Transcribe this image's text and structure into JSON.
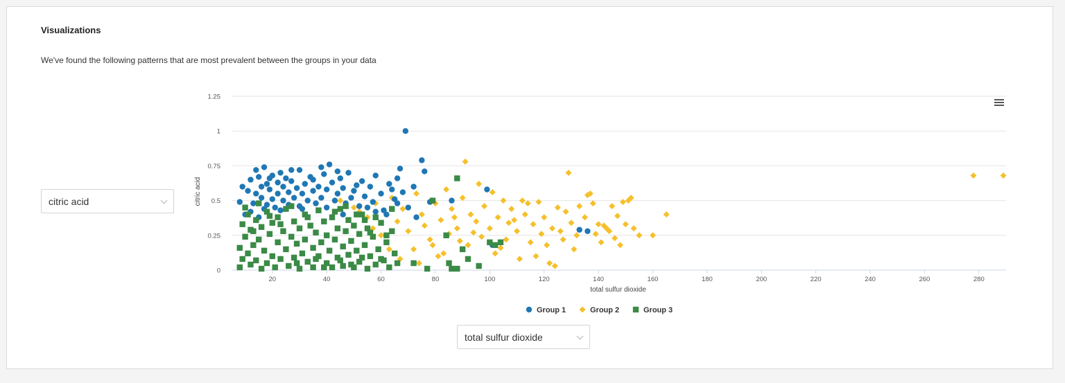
{
  "header": {
    "title": "Visualizations",
    "subtitle": "We've found the following patterns that are most prevalent between the groups in your data"
  },
  "controls": {
    "y_select": "citric acid",
    "x_select": "total sulfur dioxide"
  },
  "icons": {
    "menu": "hamburger-menu-icon",
    "dropdown": "chevron-down-icon"
  },
  "chart_data": {
    "type": "scatter",
    "xlabel": "total sulfur dioxide",
    "ylabel": "citric acid",
    "xlim": [
      5,
      290
    ],
    "ylim": [
      0,
      1.25
    ],
    "x_ticks": [
      20,
      40,
      60,
      80,
      100,
      120,
      140,
      160,
      180,
      200,
      220,
      240,
      260,
      280
    ],
    "y_ticks": [
      0,
      0.25,
      0.5,
      0.75,
      1,
      1.25
    ],
    "y_tick_labels": [
      "0",
      "0.25",
      "0.5",
      "0.75",
      "1",
      "1.25"
    ],
    "grid": true,
    "legend_position": "bottom",
    "series": [
      {
        "name": "Group 1",
        "marker": "circle",
        "color": "#1f77b4",
        "points": [
          [
            8,
            0.49
          ],
          [
            10,
            0.4
          ],
          [
            11,
            0.57
          ],
          [
            12,
            0.65
          ],
          [
            13,
            0.48
          ],
          [
            14,
            0.55
          ],
          [
            14,
            0.72
          ],
          [
            15,
            0.67
          ],
          [
            16,
            0.52
          ],
          [
            16,
            0.6
          ],
          [
            17,
            0.44
          ],
          [
            17,
            0.74
          ],
          [
            18,
            0.62
          ],
          [
            18,
            0.47
          ],
          [
            19,
            0.58
          ],
          [
            20,
            0.51
          ],
          [
            20,
            0.68
          ],
          [
            21,
            0.45
          ],
          [
            22,
            0.63
          ],
          [
            22,
            0.55
          ],
          [
            23,
            0.7
          ],
          [
            24,
            0.5
          ],
          [
            24,
            0.6
          ],
          [
            25,
            0.66
          ],
          [
            26,
            0.47
          ],
          [
            26,
            0.56
          ],
          [
            27,
            0.64
          ],
          [
            28,
            0.52
          ],
          [
            29,
            0.59
          ],
          [
            30,
            0.72
          ],
          [
            30,
            0.46
          ],
          [
            31,
            0.55
          ],
          [
            32,
            0.62
          ],
          [
            33,
            0.5
          ],
          [
            34,
            0.67
          ],
          [
            35,
            0.57
          ],
          [
            36,
            0.48
          ],
          [
            37,
            0.6
          ],
          [
            38,
            0.52
          ],
          [
            39,
            0.69
          ],
          [
            40,
            0.45
          ],
          [
            40,
            0.58
          ],
          [
            41,
            0.76
          ],
          [
            42,
            0.63
          ],
          [
            43,
            0.5
          ],
          [
            44,
            0.55
          ],
          [
            45,
            0.66
          ],
          [
            46,
            0.59
          ],
          [
            47,
            0.48
          ],
          [
            48,
            0.7
          ],
          [
            49,
            0.52
          ],
          [
            50,
            0.57
          ],
          [
            51,
            0.61
          ],
          [
            52,
            0.46
          ],
          [
            53,
            0.64
          ],
          [
            54,
            0.53
          ],
          [
            56,
            0.6
          ],
          [
            57,
            0.49
          ],
          [
            58,
            0.68
          ],
          [
            60,
            0.55
          ],
          [
            61,
            0.43
          ],
          [
            63,
            0.62
          ],
          [
            64,
            0.58
          ],
          [
            65,
            0.51
          ],
          [
            66,
            0.66
          ],
          [
            67,
            0.73
          ],
          [
            68,
            0.56
          ],
          [
            69,
            1.0
          ],
          [
            70,
            0.45
          ],
          [
            72,
            0.6
          ],
          [
            75,
            0.79
          ],
          [
            76,
            0.71
          ],
          [
            78,
            0.49
          ],
          [
            86,
            0.5
          ],
          [
            99,
            0.58
          ],
          [
            101,
            0.18
          ],
          [
            133,
            0.29
          ],
          [
            136,
            0.28
          ],
          [
            9,
            0.6
          ],
          [
            12,
            0.42
          ],
          [
            15,
            0.38
          ],
          [
            19,
            0.66
          ],
          [
            23,
            0.43
          ],
          [
            27,
            0.72
          ],
          [
            31,
            0.44
          ],
          [
            35,
            0.65
          ],
          [
            38,
            0.74
          ],
          [
            44,
            0.71
          ],
          [
            46,
            0.4
          ],
          [
            55,
            0.45
          ],
          [
            58,
            0.42
          ],
          [
            62,
            0.4
          ],
          [
            66,
            0.48
          ],
          [
            73,
            0.38
          ]
        ]
      },
      {
        "name": "Group 2",
        "marker": "diamond",
        "color": "#f5c02c",
        "points": [
          [
            45,
            0.5
          ],
          [
            50,
            0.45
          ],
          [
            52,
            0.42
          ],
          [
            55,
            0.38
          ],
          [
            57,
            0.3
          ],
          [
            58,
            0.48
          ],
          [
            60,
            0.25
          ],
          [
            62,
            0.2
          ],
          [
            64,
            0.52
          ],
          [
            66,
            0.35
          ],
          [
            68,
            0.44
          ],
          [
            70,
            0.28
          ],
          [
            72,
            0.15
          ],
          [
            73,
            0.55
          ],
          [
            75,
            0.4
          ],
          [
            76,
            0.32
          ],
          [
            78,
            0.22
          ],
          [
            80,
            0.48
          ],
          [
            81,
            0.1
          ],
          [
            82,
            0.36
          ],
          [
            84,
            0.58
          ],
          [
            85,
            0.26
          ],
          [
            86,
            0.44
          ],
          [
            88,
            0.3
          ],
          [
            90,
            0.52
          ],
          [
            91,
            0.78
          ],
          [
            92,
            0.18
          ],
          [
            93,
            0.4
          ],
          [
            95,
            0.35
          ],
          [
            96,
            0.62
          ],
          [
            97,
            0.24
          ],
          [
            98,
            0.46
          ],
          [
            100,
            0.3
          ],
          [
            101,
            0.56
          ],
          [
            102,
            0.12
          ],
          [
            103,
            0.38
          ],
          [
            105,
            0.5
          ],
          [
            106,
            0.22
          ],
          [
            107,
            0.34
          ],
          [
            108,
            0.44
          ],
          [
            110,
            0.28
          ],
          [
            111,
            0.08
          ],
          [
            112,
            0.5
          ],
          [
            113,
            0.4
          ],
          [
            115,
            0.2
          ],
          [
            116,
            0.33
          ],
          [
            118,
            0.49
          ],
          [
            119,
            0.26
          ],
          [
            120,
            0.38
          ],
          [
            121,
            0.18
          ],
          [
            122,
            0.05
          ],
          [
            123,
            0.3
          ],
          [
            125,
            0.45
          ],
          [
            126,
            0.28
          ],
          [
            127,
            0.22
          ],
          [
            128,
            0.42
          ],
          [
            129,
            0.7
          ],
          [
            130,
            0.34
          ],
          [
            132,
            0.25
          ],
          [
            133,
            0.46
          ],
          [
            135,
            0.38
          ],
          [
            136,
            0.54
          ],
          [
            138,
            0.48
          ],
          [
            139,
            0.26
          ],
          [
            140,
            0.33
          ],
          [
            141,
            0.2
          ],
          [
            143,
            0.3
          ],
          [
            144,
            0.28
          ],
          [
            145,
            0.46
          ],
          [
            147,
            0.39
          ],
          [
            148,
            0.18
          ],
          [
            150,
            0.33
          ],
          [
            151,
            0.5
          ],
          [
            152,
            0.52
          ],
          [
            153,
            0.3
          ],
          [
            155,
            0.25
          ],
          [
            160,
            0.25
          ],
          [
            165,
            0.4
          ],
          [
            278,
            0.68
          ],
          [
            289,
            0.68
          ],
          [
            63,
            0.15
          ],
          [
            67,
            0.08
          ],
          [
            74,
            0.05
          ],
          [
            79,
            0.18
          ],
          [
            83,
            0.12
          ],
          [
            87,
            0.38
          ],
          [
            89,
            0.21
          ],
          [
            94,
            0.27
          ],
          [
            104,
            0.16
          ],
          [
            109,
            0.36
          ],
          [
            114,
            0.48
          ],
          [
            117,
            0.1
          ],
          [
            124,
            0.03
          ],
          [
            131,
            0.15
          ],
          [
            137,
            0.55
          ],
          [
            142,
            0.32
          ],
          [
            146,
            0.23
          ],
          [
            149,
            0.49
          ]
        ]
      },
      {
        "name": "Group 3",
        "marker": "square",
        "color": "#3b8a46",
        "points": [
          [
            8,
            0.02
          ],
          [
            8,
            0.16
          ],
          [
            9,
            0.33
          ],
          [
            9,
            0.08
          ],
          [
            10,
            0.24
          ],
          [
            11,
            0.4
          ],
          [
            11,
            0.12
          ],
          [
            12,
            0.04
          ],
          [
            12,
            0.29
          ],
          [
            13,
            0.18
          ],
          [
            14,
            0.36
          ],
          [
            14,
            0.07
          ],
          [
            15,
            0.22
          ],
          [
            16,
            0.01
          ],
          [
            16,
            0.31
          ],
          [
            17,
            0.14
          ],
          [
            18,
            0.42
          ],
          [
            18,
            0.05
          ],
          [
            19,
            0.26
          ],
          [
            20,
            0.1
          ],
          [
            20,
            0.34
          ],
          [
            21,
            0.02
          ],
          [
            22,
            0.2
          ],
          [
            22,
            0.38
          ],
          [
            23,
            0.08
          ],
          [
            24,
            0.28
          ],
          [
            25,
            0.15
          ],
          [
            25,
            0.44
          ],
          [
            26,
            0.03
          ],
          [
            27,
            0.24
          ],
          [
            28,
            0.35
          ],
          [
            28,
            0.09
          ],
          [
            29,
            0.19
          ],
          [
            30,
            0.3
          ],
          [
            30,
            0.01
          ],
          [
            31,
            0.12
          ],
          [
            32,
            0.4
          ],
          [
            32,
            0.22
          ],
          [
            33,
            0.06
          ],
          [
            34,
            0.32
          ],
          [
            35,
            0.16
          ],
          [
            35,
            0.02
          ],
          [
            36,
            0.27
          ],
          [
            37,
            0.43
          ],
          [
            37,
            0.1
          ],
          [
            38,
            0.2
          ],
          [
            39,
            0.35
          ],
          [
            40,
            0.05
          ],
          [
            40,
            0.25
          ],
          [
            41,
            0.14
          ],
          [
            42,
            0.38
          ],
          [
            42,
            0.02
          ],
          [
            43,
            0.22
          ],
          [
            44,
            0.3
          ],
          [
            44,
            0.09
          ],
          [
            45,
            0.44
          ],
          [
            46,
            0.17
          ],
          [
            46,
            0.03
          ],
          [
            47,
            0.28
          ],
          [
            48,
            0.11
          ],
          [
            48,
            0.36
          ],
          [
            49,
            0.21
          ],
          [
            50,
            0.02
          ],
          [
            50,
            0.32
          ],
          [
            51,
            0.14
          ],
          [
            52,
            0.26
          ],
          [
            52,
            0.06
          ],
          [
            53,
            0.4
          ],
          [
            54,
            0.18
          ],
          [
            55,
            0.01
          ],
          [
            55,
            0.3
          ],
          [
            56,
            0.1
          ],
          [
            57,
            0.24
          ],
          [
            58,
            0.04
          ],
          [
            59,
            0.15
          ],
          [
            60,
            0.34
          ],
          [
            61,
            0.07
          ],
          [
            62,
            0.2
          ],
          [
            63,
            0.02
          ],
          [
            64,
            0.28
          ],
          [
            65,
            0.12
          ],
          [
            66,
            0.05
          ],
          [
            72,
            0.05
          ],
          [
            77,
            0.01
          ],
          [
            79,
            0.5
          ],
          [
            84,
            0.25
          ],
          [
            85,
            0.05
          ],
          [
            86,
            0.01
          ],
          [
            88,
            0.01
          ],
          [
            88,
            0.66
          ],
          [
            90,
            0.15
          ],
          [
            92,
            0.08
          ],
          [
            96,
            0.03
          ],
          [
            100,
            0.2
          ],
          [
            102,
            0.18
          ],
          [
            104,
            0.2
          ],
          [
            10,
            0.45
          ],
          [
            13,
            0.28
          ],
          [
            15,
            0.48
          ],
          [
            19,
            0.39
          ],
          [
            23,
            0.33
          ],
          [
            27,
            0.46
          ],
          [
            29,
            0.05
          ],
          [
            33,
            0.38
          ],
          [
            36,
            0.08
          ],
          [
            39,
            0.02
          ],
          [
            43,
            0.42
          ],
          [
            45,
            0.07
          ],
          [
            47,
            0.46
          ],
          [
            49,
            0.04
          ],
          [
            51,
            0.4
          ],
          [
            53,
            0.09
          ],
          [
            54,
            0.36
          ],
          [
            56,
            0.27
          ],
          [
            58,
            0.38
          ],
          [
            60,
            0.08
          ],
          [
            62,
            0.25
          ],
          [
            64,
            0.44
          ]
        ]
      }
    ]
  }
}
